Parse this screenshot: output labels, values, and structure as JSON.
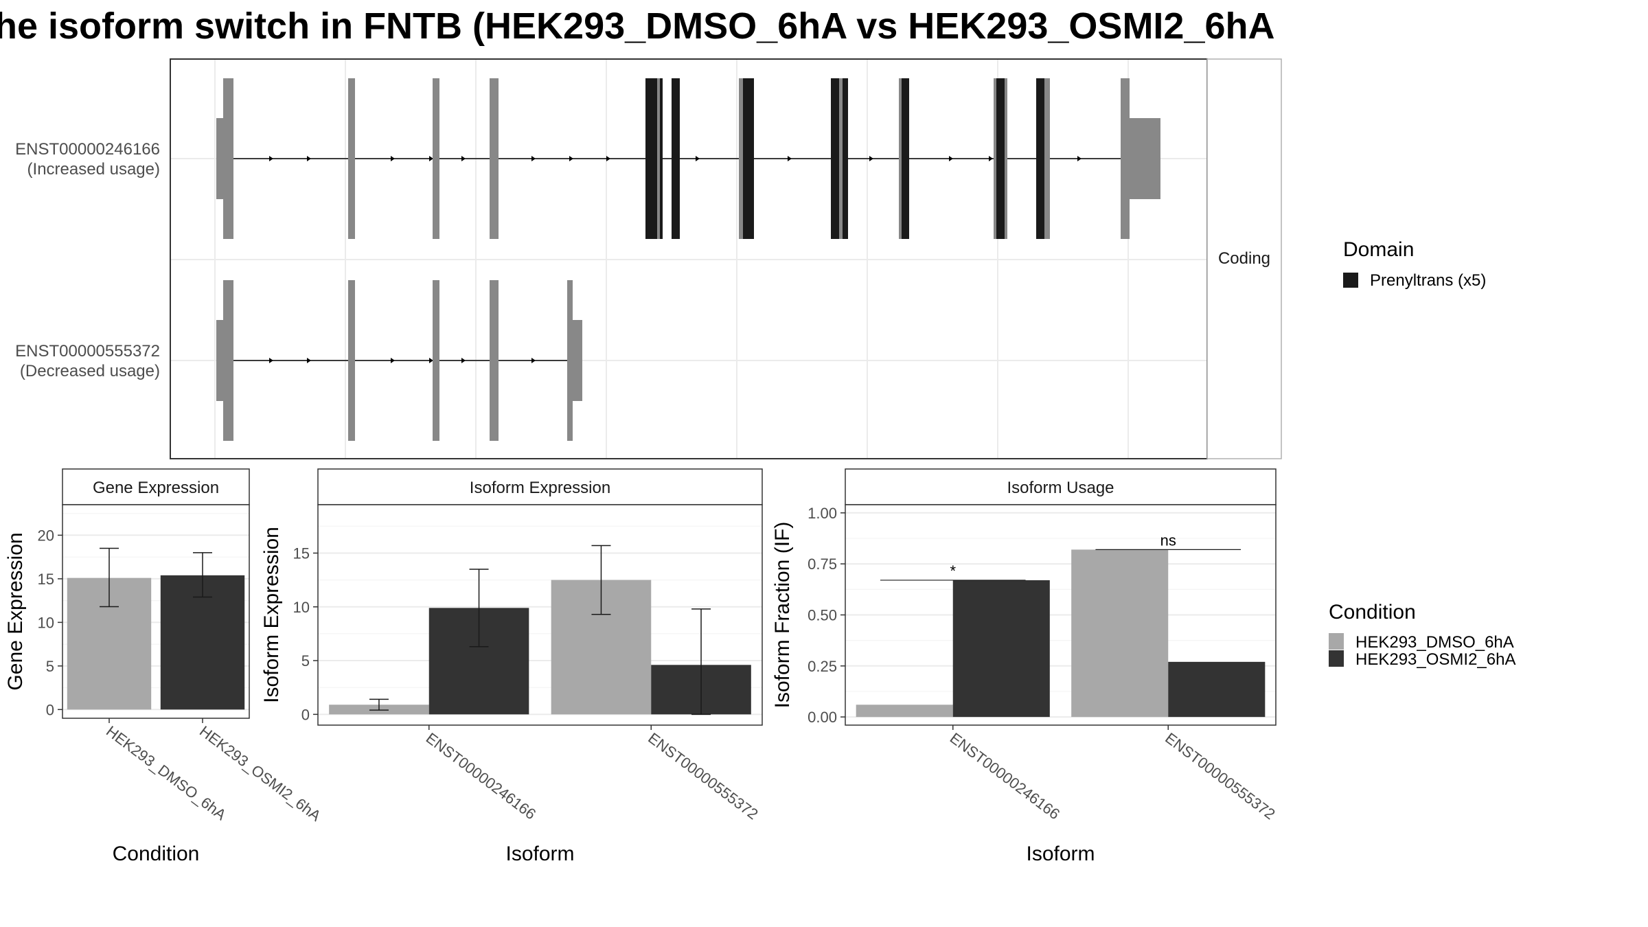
{
  "title": "he isoform switch in FNTB (HEK293_DMSO_6hA vs HEK293_OSMI2_6hA",
  "colors": {
    "dmso": "#a8a8a8",
    "osmi": "#333333",
    "exon": "#888888",
    "domain": "#1a1a1a",
    "grid": "#ebebeb",
    "panel_border": "#333333"
  },
  "structure": {
    "strip_label": "Coding",
    "transcripts": [
      {
        "id": "ENST00000246166",
        "usage_label": "(Increased usage)"
      },
      {
        "id": "ENST00000555372",
        "usage_label": "(Decreased usage)"
      }
    ],
    "legend": {
      "title": "Domain",
      "items": [
        {
          "label": "Prenyltrans (x5)",
          "color": "#1a1a1a"
        }
      ]
    }
  },
  "condition_legend": {
    "title": "Condition",
    "items": [
      {
        "label": "HEK293_DMSO_6hA",
        "color": "#a8a8a8"
      },
      {
        "label": "HEK293_OSMI2_6hA",
        "color": "#333333"
      }
    ]
  },
  "chart_data": [
    {
      "type": "bar",
      "title": "Gene Expression",
      "xlabel": "Condition",
      "ylabel": "Gene Expression",
      "categories": [
        "HEK293_DMSO_6hA",
        "HEK293_OSMI2_6hA"
      ],
      "values": [
        15.1,
        15.4
      ],
      "error_low": [
        11.8,
        12.9
      ],
      "error_high": [
        18.5,
        18.0
      ],
      "yticks": [
        "0",
        "5",
        "10",
        "15",
        "20"
      ],
      "ylim": [
        -1,
        23.5
      ]
    },
    {
      "type": "bar",
      "title": "Isoform Expression",
      "xlabel": "Isoform",
      "ylabel": "Isoform Expression",
      "categories": [
        "ENST00000246166",
        "ENST00000555372"
      ],
      "series": [
        {
          "values": [
            0.9,
            12.5
          ],
          "error_low": [
            0.4,
            9.3
          ],
          "error_high": [
            1.4,
            15.7
          ]
        },
        {
          "values": [
            9.9,
            4.6
          ],
          "error_low": [
            6.3,
            0.0
          ],
          "error_high": [
            13.5,
            9.8
          ]
        }
      ],
      "yticks": [
        "0",
        "5",
        "10",
        "15"
      ],
      "ylim": [
        -1,
        19.5
      ]
    },
    {
      "type": "bar",
      "title": "Isoform Usage",
      "xlabel": "Isoform",
      "ylabel": "Isoform Fraction (IF)",
      "categories": [
        "ENST00000246166",
        "ENST00000555372"
      ],
      "series": [
        {
          "values": [
            0.06,
            0.82
          ]
        },
        {
          "values": [
            0.67,
            0.27
          ]
        }
      ],
      "significance": [
        "*",
        "ns"
      ],
      "yticks": [
        "0.00",
        "0.25",
        "0.50",
        "0.75",
        "1.00"
      ],
      "ylim": [
        -0.04,
        1.04
      ]
    }
  ]
}
